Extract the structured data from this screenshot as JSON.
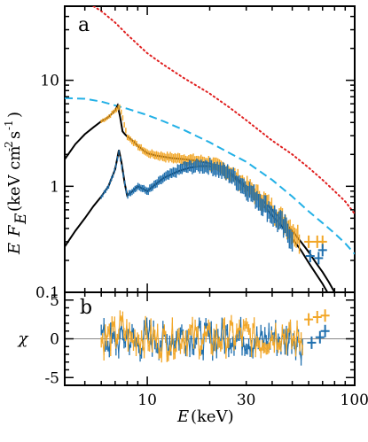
{
  "chart_data": [
    {
      "panel": "a",
      "type": "line",
      "xlabel": "E (keV)",
      "ylabel": "E F_E (keV cm^-2 s^-1)",
      "xscale": "log",
      "yscale": "log",
      "xlim": [
        4,
        100
      ],
      "ylim": [
        0.1,
        50
      ],
      "y_ticks": [
        {
          "v": 0.1,
          "label": "0.1"
        },
        {
          "v": 1,
          "label": "1"
        },
        {
          "v": 10,
          "label": "10"
        }
      ],
      "colors": {
        "blue_data": "#1f6fae",
        "orange_data": "#f2a626",
        "dashed_model": "#22b0e6",
        "dotted_model": "#e02020",
        "model_line": "#000000"
      },
      "series": [
        {
          "style": "dotted",
          "color": "#e02020",
          "x": [
            5.5,
            6,
            7,
            8,
            10,
            12,
            15,
            20,
            25,
            30,
            40,
            50,
            60,
            70,
            80,
            90,
            100
          ],
          "y": [
            50,
            45,
            35,
            27,
            18,
            14,
            10.5,
            7.5,
            5.5,
            4.2,
            2.7,
            2.0,
            1.5,
            1.15,
            0.9,
            0.72,
            0.55
          ]
        },
        {
          "style": "dashed",
          "color": "#22b0e6",
          "x": [
            4,
            5,
            6,
            8,
            10,
            12,
            15,
            20,
            25,
            30,
            40,
            50,
            60,
            70,
            80,
            90,
            100
          ],
          "y": [
            6.8,
            6.7,
            6.3,
            5.4,
            4.7,
            4.1,
            3.4,
            2.6,
            2.05,
            1.7,
            1.15,
            0.8,
            0.58,
            0.45,
            0.36,
            0.29,
            0.23
          ]
        },
        {
          "style": "solid",
          "color": "#000000",
          "x": [
            4,
            4.5,
            5,
            5.5,
            6,
            6.5,
            7,
            7.2,
            7.4,
            7.6,
            7.8,
            8.0,
            8.5,
            9,
            10,
            11,
            12,
            13,
            15,
            17,
            20,
            22,
            25,
            28,
            30,
            35,
            40,
            45,
            50,
            55,
            60,
            65,
            70,
            75,
            80,
            85
          ],
          "y": [
            1.8,
            2.5,
            3.1,
            3.6,
            4.1,
            4.5,
            5.2,
            5.8,
            4.5,
            3.3,
            3.1,
            2.95,
            2.7,
            2.4,
            2.05,
            1.95,
            1.9,
            1.85,
            1.8,
            1.75,
            1.65,
            1.55,
            1.35,
            1.12,
            1.0,
            0.78,
            0.6,
            0.47,
            0.38,
            0.3,
            0.24,
            0.19,
            0.155,
            0.125,
            0.1,
            0.08
          ]
        },
        {
          "style": "solid",
          "color": "#000000",
          "x": [
            4,
            4.5,
            5,
            5.5,
            6,
            6.5,
            7,
            7.3,
            7.5,
            7.8,
            8.0,
            8.5,
            9,
            9.5,
            10,
            11,
            12,
            14,
            16,
            18,
            20,
            22,
            25,
            28,
            30,
            35,
            40,
            45,
            50,
            55,
            60,
            65,
            70,
            75,
            80
          ],
          "y": [
            0.27,
            0.38,
            0.5,
            0.65,
            0.8,
            1.0,
            1.45,
            2.2,
            1.7,
            1.05,
            0.82,
            0.9,
            1.0,
            0.95,
            0.9,
            1.05,
            1.2,
            1.38,
            1.5,
            1.55,
            1.55,
            1.48,
            1.3,
            1.08,
            0.95,
            0.72,
            0.53,
            0.41,
            0.32,
            0.25,
            0.19,
            0.15,
            0.12,
            0.095,
            0.075
          ]
        },
        {
          "style": "data",
          "color": "#f2a626",
          "x": [
            6,
            6.5,
            7,
            7.4,
            8,
            9,
            10,
            12,
            15,
            20,
            25,
            30,
            35,
            40,
            45,
            50,
            55
          ],
          "y": [
            4.1,
            4.5,
            5.2,
            5.6,
            2.95,
            2.4,
            2.05,
            1.9,
            1.8,
            1.65,
            1.35,
            1.0,
            0.78,
            0.6,
            0.47,
            0.38,
            0.3
          ]
        },
        {
          "style": "data",
          "color": "#1f6fae",
          "x": [
            6,
            6.5,
            7,
            7.3,
            8,
            9,
            10,
            12,
            15,
            18,
            20,
            25,
            30,
            35,
            40,
            45,
            50
          ],
          "y": [
            0.8,
            1.0,
            1.45,
            2.1,
            0.82,
            1.0,
            0.9,
            1.2,
            1.5,
            1.55,
            1.55,
            1.3,
            0.95,
            0.72,
            0.55,
            0.42,
            0.33
          ]
        },
        {
          "style": "cross",
          "color": "#f2a626",
          "x": [
            60,
            66,
            70
          ],
          "y": [
            0.3,
            0.3,
            0.3
          ]
        },
        {
          "style": "cross",
          "color": "#1f6fae",
          "x": [
            61,
            67,
            70
          ],
          "y": [
            0.22,
            0.21,
            0.25
          ]
        }
      ]
    },
    {
      "panel": "b",
      "type": "scatter",
      "xlabel": "E (keV)",
      "ylabel": "χ",
      "xscale": "log",
      "xlim": [
        4,
        100
      ],
      "ylim": [
        -6,
        6
      ],
      "y_ticks": [
        {
          "v": -5,
          "label": "-5"
        },
        {
          "v": 0,
          "label": "0"
        },
        {
          "v": 5,
          "label": "5"
        }
      ],
      "x_ticks": [
        {
          "v": 10,
          "label": "10"
        },
        {
          "v": 30,
          "label": "30"
        },
        {
          "v": 100,
          "label": "100"
        }
      ],
      "zero_line": 0,
      "series": [
        {
          "color": "#1f6fae",
          "x": [
            6,
            7,
            8,
            9,
            10,
            12,
            15,
            20,
            25,
            30,
            35,
            40,
            45,
            50,
            55,
            62,
            68,
            72
          ],
          "y": [
            0.5,
            -1.5,
            1.0,
            -2.0,
            0.8,
            -1.0,
            1.5,
            -0.5,
            1.0,
            0.5,
            -1.5,
            1.2,
            -0.8,
            1.5,
            -2.0,
            -0.5,
            0.2,
            1.0
          ]
        },
        {
          "color": "#f2a626",
          "x": [
            6,
            7,
            7.5,
            8.5,
            9,
            10,
            12,
            15,
            20,
            25,
            30,
            35,
            40,
            45,
            50,
            55,
            60,
            66,
            72
          ],
          "y": [
            -0.5,
            1.0,
            3.8,
            -0.8,
            1.0,
            0.5,
            -1.0,
            1.2,
            -0.5,
            0.8,
            1.5,
            -1.0,
            1.2,
            2.0,
            -0.8,
            0.5,
            2.5,
            2.8,
            3.0
          ]
        }
      ]
    }
  ]
}
